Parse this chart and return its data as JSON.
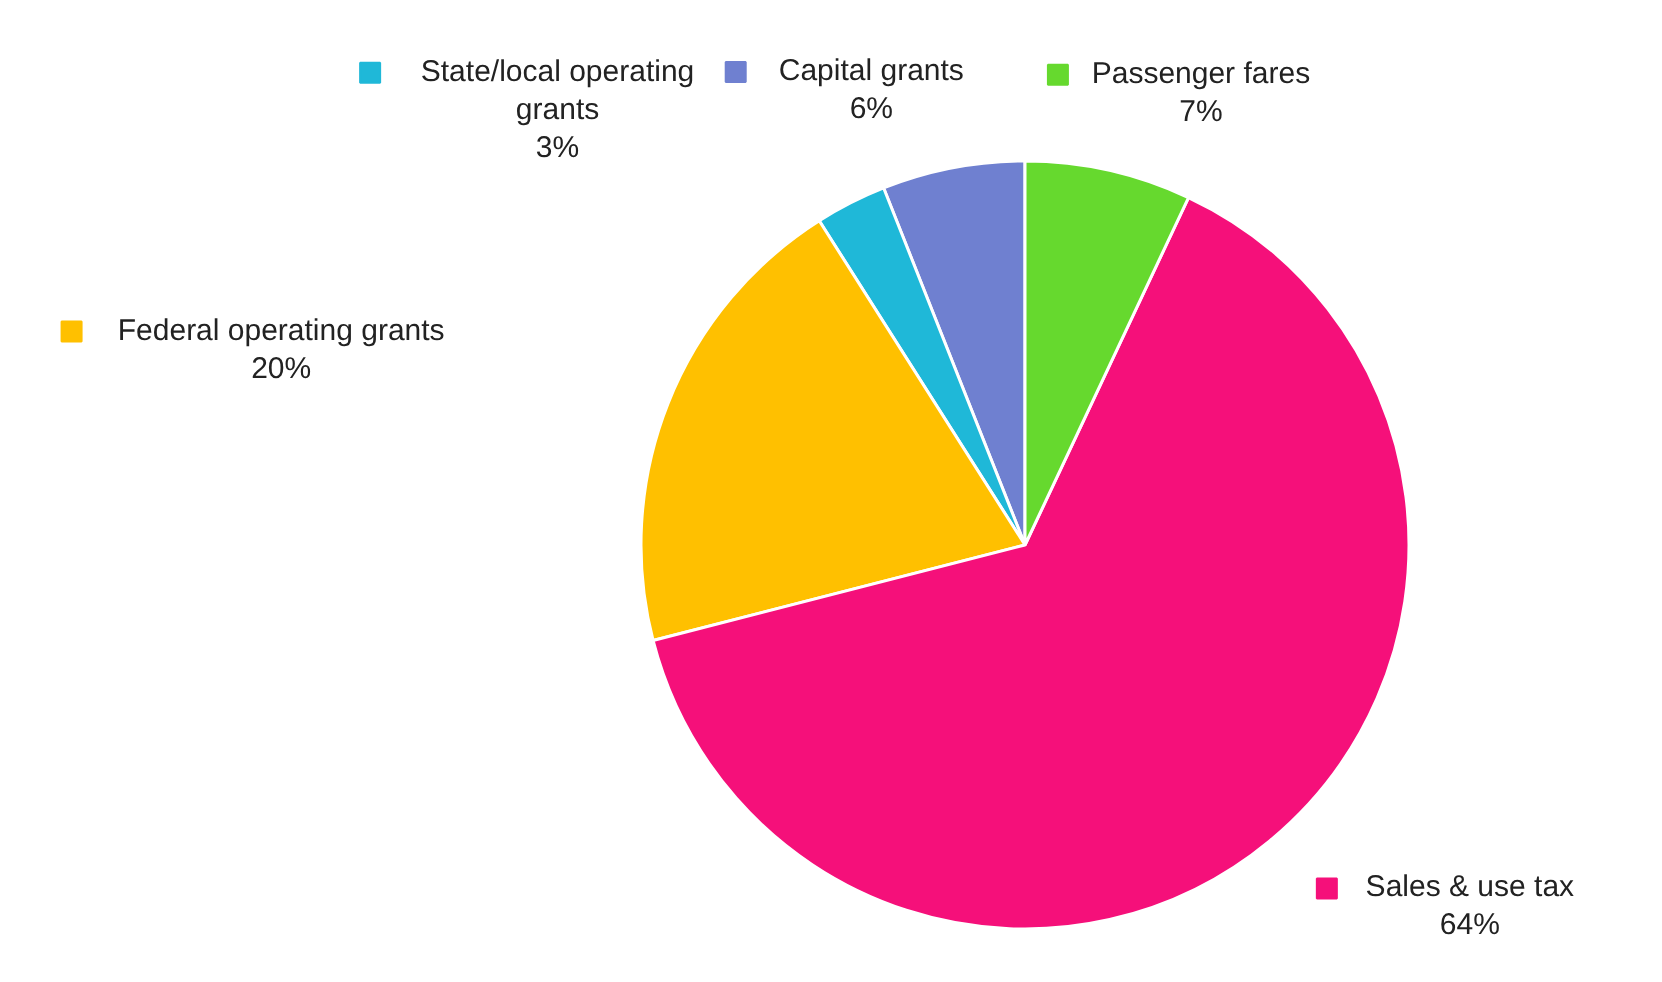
{
  "chart_data": {
    "type": "pie",
    "categories": [
      "Passenger fares",
      "Sales & use tax",
      "Federal operating grants",
      "State/local operating grants",
      "Capital grants"
    ],
    "values": [
      7,
      64,
      20,
      3,
      6
    ],
    "colors": [
      "#66d92e",
      "#f5107a",
      "#ffc000",
      "#1fb8d8",
      "#6f80d0"
    ],
    "value_labels": [
      "7%",
      "64%",
      "20%",
      "3%",
      "6%"
    ],
    "legend": "top"
  }
}
